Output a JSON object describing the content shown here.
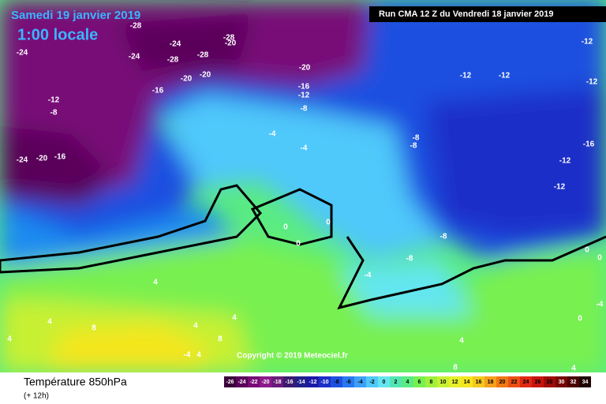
{
  "header": {
    "date": "Samedi 19 janvier 2019",
    "time": "1:00 locale",
    "run": "Run CMA 12 Z du Vendredi 18 janvier 2019"
  },
  "copyright": "Copyright © 2019 Meteociel.fr",
  "footer": {
    "title": "Température 850hPa",
    "lead": "(+ 12h)"
  },
  "map_labels": [
    -28,
    -24,
    -28,
    -20,
    -24,
    -28,
    -28,
    -20,
    -20,
    -24,
    -20,
    -16,
    -16,
    -12,
    -12,
    -8,
    -8,
    -24,
    -20,
    -16,
    -4,
    -4,
    -12,
    -12,
    -12,
    -12,
    -8,
    -8,
    -16,
    -12,
    -12,
    0,
    0,
    0,
    -8,
    -8,
    -4,
    0,
    0,
    4,
    4,
    8,
    4,
    4,
    4,
    8,
    4,
    -4,
    4,
    8,
    4,
    0,
    -4
  ],
  "legend": {
    "ticks": [
      -26,
      -24,
      -22,
      -20,
      -18,
      -16,
      -14,
      -12,
      -10,
      -8,
      -6,
      -4,
      -2,
      0,
      2,
      4,
      6,
      8,
      10,
      12,
      14,
      16,
      18,
      20,
      22,
      24,
      26,
      28,
      30,
      32,
      34
    ],
    "colors": [
      "#3a003a",
      "#5a005a",
      "#780a78",
      "#8c1a8c",
      "#6a1a7a",
      "#3c1a6e",
      "#20208c",
      "#1a1aa8",
      "#1e2ec8",
      "#1e50e0",
      "#2878f0",
      "#3ca0f8",
      "#50c8fa",
      "#64e6f0",
      "#50e6b4",
      "#5aeb82",
      "#78f050",
      "#a0f03c",
      "#c8f032",
      "#e6f028",
      "#f5e61e",
      "#f5c81e",
      "#f5a01e",
      "#f07814",
      "#eb5014",
      "#e12814",
      "#c8140f",
      "#a00a0a",
      "#780505",
      "#4b0000",
      "#1e0000"
    ]
  }
}
